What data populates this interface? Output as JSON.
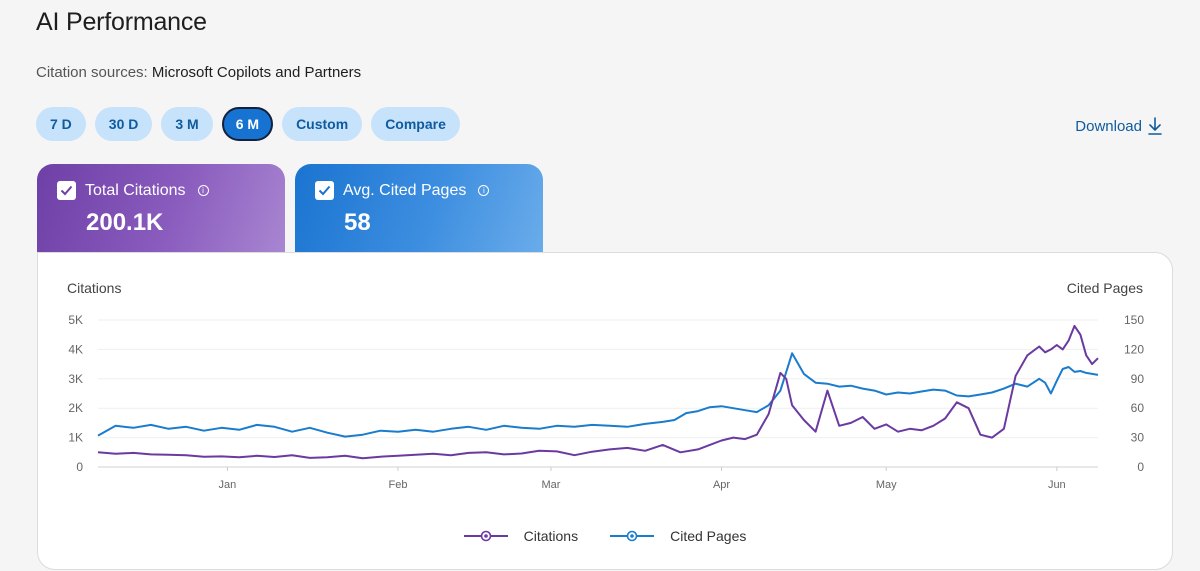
{
  "header": {
    "title": "AI Performance",
    "sources_label": "Citation sources:",
    "sources_value": "Microsoft Copilots and Partners"
  },
  "ranges": [
    {
      "label": "7 D",
      "active": false
    },
    {
      "label": "30 D",
      "active": false
    },
    {
      "label": "3 M",
      "active": false
    },
    {
      "label": "6 M",
      "active": true
    },
    {
      "label": "Custom",
      "active": false
    },
    {
      "label": "Compare",
      "active": false
    }
  ],
  "download_label": "Download",
  "cards": {
    "citations": {
      "label": "Total Citations",
      "value": "200.1K",
      "checked": true
    },
    "pages": {
      "label": "Avg. Cited Pages",
      "value": "58",
      "checked": true
    }
  },
  "colors": {
    "citations": "#6a3aa0",
    "pages": "#1a7ccc",
    "accent": "#1673d2"
  },
  "icons": {
    "checkbox": "check-icon",
    "info": "info-icon",
    "download": "download-arrow-icon",
    "legend": "legend-line-dot-icon"
  },
  "chart_data": {
    "type": "line",
    "ylabel_left": "Citations",
    "ylabel_right": "Cited Pages",
    "y_left_ticks": [
      "0",
      "1K",
      "2K",
      "3K",
      "4K",
      "5K"
    ],
    "y_right_ticks": [
      "0",
      "30",
      "60",
      "90",
      "120",
      "150"
    ],
    "ylim_left": [
      0,
      5000
    ],
    "ylim_right": [
      0,
      150
    ],
    "x_ticks": [
      "Jan",
      "Feb",
      "Mar",
      "Apr",
      "May",
      "Jun"
    ],
    "x_tick_day_index": [
      22,
      51,
      77,
      106,
      134,
      163
    ],
    "x_range_days": [
      0,
      170
    ],
    "grid": true,
    "legend_placement": "bottom",
    "series": [
      {
        "name": "Citations",
        "axis": "left",
        "color": "#6a3aa0",
        "x": [
          0,
          3,
          6,
          9,
          12,
          15,
          18,
          21,
          24,
          27,
          30,
          33,
          36,
          39,
          42,
          45,
          48,
          51,
          54,
          57,
          60,
          63,
          66,
          69,
          72,
          75,
          78,
          81,
          84,
          87,
          90,
          93,
          96,
          99,
          102,
          104,
          106,
          108,
          110,
          112,
          114,
          116,
          117,
          118,
          120,
          122,
          124,
          126,
          128,
          130,
          132,
          134,
          136,
          138,
          140,
          142,
          144,
          146,
          148,
          150,
          152,
          154,
          156,
          158,
          160,
          161,
          162,
          163,
          164,
          165,
          166,
          167,
          168,
          169,
          170
        ],
        "y": [
          500,
          450,
          480,
          430,
          420,
          400,
          350,
          360,
          330,
          380,
          340,
          400,
          310,
          330,
          380,
          300,
          350,
          380,
          420,
          450,
          400,
          480,
          500,
          430,
          460,
          550,
          530,
          400,
          520,
          600,
          650,
          550,
          750,
          500,
          600,
          750,
          900,
          1000,
          950,
          1100,
          1800,
          3200,
          3000,
          2100,
          1600,
          1200,
          2600,
          1400,
          1500,
          1700,
          1300,
          1450,
          1200,
          1300,
          1250,
          1400,
          1650,
          2200,
          2000,
          1100,
          1000,
          1300,
          3100,
          3800,
          4100,
          3900,
          4000,
          4150,
          4000,
          4300,
          4800,
          4500,
          3800,
          3500,
          3700
        ]
      },
      {
        "name": "Cited Pages",
        "axis": "right",
        "color": "#1a7ccc",
        "x": [
          0,
          3,
          6,
          9,
          12,
          15,
          18,
          21,
          24,
          27,
          30,
          33,
          36,
          39,
          42,
          45,
          48,
          51,
          54,
          57,
          60,
          63,
          66,
          69,
          72,
          75,
          78,
          81,
          84,
          87,
          90,
          93,
          96,
          98,
          100,
          102,
          104,
          106,
          108,
          110,
          112,
          114,
          116,
          118,
          120,
          122,
          124,
          126,
          128,
          130,
          132,
          134,
          136,
          138,
          140,
          142,
          144,
          146,
          148,
          150,
          152,
          154,
          156,
          158,
          160,
          161,
          162,
          163,
          164,
          165,
          166,
          167,
          168,
          169,
          170
        ],
        "y": [
          32,
          42,
          40,
          43,
          39,
          41,
          37,
          40,
          38,
          43,
          41,
          36,
          40,
          35,
          31,
          33,
          37,
          36,
          38,
          36,
          39,
          41,
          38,
          42,
          40,
          39,
          42,
          41,
          43,
          42,
          41,
          44,
          46,
          48,
          55,
          57,
          61,
          62,
          60,
          58,
          56,
          63,
          78,
          116,
          95,
          86,
          85,
          82,
          83,
          80,
          78,
          74,
          76,
          75,
          77,
          79,
          78,
          73,
          72,
          74,
          76,
          80,
          85,
          82,
          90,
          86,
          75,
          88,
          100,
          102,
          97,
          98,
          96,
          95,
          94
        ]
      }
    ]
  }
}
